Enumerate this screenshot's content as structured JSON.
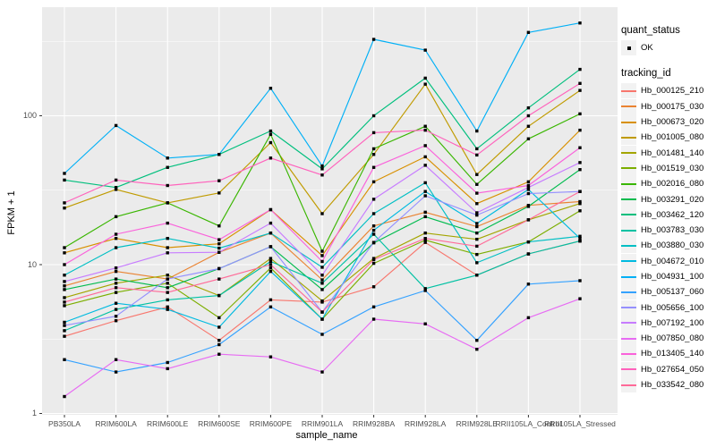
{
  "panel": {
    "bg": "#EBEBEB",
    "grid_major_color": "#FFFFFF",
    "grid_minor_color": "#FFFFFF",
    "tick_color": "#333333",
    "point_color": "#000000"
  },
  "axes": {
    "x": {
      "title": "sample_name",
      "labels": [
        "PB350LA",
        "RRIM600LA",
        "RRIM600LE",
        "RRIM600SE",
        "RRIM600PE",
        "RRIM901LA",
        "RRIM928BA",
        "RRIM928LA",
        "RRIM928LE",
        "RRII105LA_Control",
        "RRII105LA_Stressed"
      ]
    },
    "y": {
      "title": "FPKM + 1",
      "tick_labels": [
        "100",
        "10",
        "1"
      ],
      "tick_values": [
        100,
        10,
        1
      ],
      "minor_values": [
        316.23,
        31.623,
        3.1623
      ],
      "scale": "log10"
    }
  },
  "legend": {
    "quant_status": {
      "title": "quant_status",
      "items": [
        {
          "label": "OK",
          "marker": "point",
          "color": "#000000"
        }
      ]
    },
    "tracking_id": {
      "title": "tracking_id"
    }
  },
  "chart_data": {
    "type": "line",
    "title": "",
    "xlabel": "sample_name",
    "ylabel": "FPKM + 1",
    "y_scale": "log10",
    "ylim": [
      1,
      540
    ],
    "grid": true,
    "legend_position": "right",
    "point_marker": {
      "shape": "square",
      "color": "#000000",
      "size": 3.4
    },
    "categories": [
      "PB350LA",
      "RRIM600LA",
      "RRIM600LE",
      "RRIM600SE",
      "RRIM600PE",
      "RRIM901LA",
      "RRIM928BA",
      "RRIM928LA",
      "RRIM928LE",
      "RRII105LA_Control",
      "RRII105LA_Stressed"
    ],
    "series": [
      {
        "name": "Hb_000125_210",
        "color": "#F8766D",
        "values": [
          3.3,
          4.2,
          5.2,
          3.1,
          5.8,
          5.6,
          7.1,
          14.1,
          8.5,
          11.8,
          14.4
        ]
      },
      {
        "name": "Hb_000175_030",
        "color": "#EA8331",
        "values": [
          7.2,
          9,
          8,
          12.1,
          16.3,
          7.9,
          18.2,
          22.5,
          18,
          25,
          26.5
        ]
      },
      {
        "name": "Hb_000673_020",
        "color": "#D89000",
        "values": [
          12,
          15,
          13,
          13.8,
          23.4,
          11.5,
          36,
          53,
          25.7,
          36,
          80
        ]
      },
      {
        "name": "Hb_001005_080",
        "color": "#C09B00",
        "values": [
          24,
          32,
          26,
          30.3,
          66,
          22,
          55,
          163,
          40.3,
          85,
          148
        ]
      },
      {
        "name": "Hb_001481_140",
        "color": "#A3A500",
        "values": [
          6,
          7.5,
          8.5,
          6.2,
          11,
          5.7,
          11,
          16.3,
          14.8,
          20,
          25.7
        ]
      },
      {
        "name": "Hb_001519_030",
        "color": "#7CAE00",
        "values": [
          5.3,
          6.5,
          7.5,
          4.4,
          9.5,
          4.3,
          10.2,
          14.6,
          11.7,
          14.2,
          23
        ]
      },
      {
        "name": "Hb_002016_080",
        "color": "#39B600",
        "values": [
          13,
          21,
          26,
          18.2,
          75,
          12.3,
          60,
          85,
          34.6,
          70,
          103
        ]
      },
      {
        "name": "Hb_003291_020",
        "color": "#00BB4E",
        "values": [
          6.8,
          8,
          7,
          9.4,
          13.2,
          6.8,
          14,
          21,
          16.3,
          24.6,
          43.5
        ]
      },
      {
        "name": "Hb_003462_120",
        "color": "#00BF7D",
        "values": [
          37,
          33,
          45,
          55,
          79,
          44,
          100,
          179,
          60,
          113,
          205
        ]
      },
      {
        "name": "Hb_003783_030",
        "color": "#00C1A3",
        "values": [
          3.6,
          5,
          5.8,
          6.2,
          10.5,
          7.5,
          16,
          6.9,
          8.5,
          11.8,
          14.4
        ]
      },
      {
        "name": "Hb_003880_030",
        "color": "#00BFC4",
        "values": [
          8.5,
          13,
          15,
          12.9,
          16.3,
          9.6,
          22,
          35.5,
          10.3,
          14.2,
          15.5
        ]
      },
      {
        "name": "Hb_004672_010",
        "color": "#00BAE0",
        "values": [
          4.1,
          5.5,
          5,
          3.8,
          9,
          4.3,
          17,
          31,
          18.9,
          32,
          15
        ]
      },
      {
        "name": "Hb_004931_100",
        "color": "#00B0F6",
        "values": [
          41,
          86,
          52,
          55,
          153,
          46,
          326,
          276,
          79,
          363,
          420
        ]
      },
      {
        "name": "Hb_005137_060",
        "color": "#35A2FF",
        "values": [
          2.3,
          1.9,
          2.2,
          2.9,
          5.2,
          3.4,
          5.2,
          6.7,
          3.1,
          7.4,
          7.8
        ]
      },
      {
        "name": "Hb_005656_100",
        "color": "#9590FF",
        "values": [
          3.9,
          4.5,
          8,
          9.4,
          13.2,
          4.8,
          14.1,
          29,
          21.5,
          30,
          31
        ]
      },
      {
        "name": "Hb_007192_100",
        "color": "#C77CFF",
        "values": [
          7.7,
          9.5,
          12,
          12.1,
          19,
          8.5,
          27.5,
          46.5,
          22.3,
          33,
          48.5
        ]
      },
      {
        "name": "Hb_007850_080",
        "color": "#E76BF3",
        "values": [
          1.3,
          2.3,
          2,
          2.5,
          2.4,
          1.9,
          4.3,
          4,
          2.7,
          4.4,
          5.9
        ]
      },
      {
        "name": "Hb_013405_140",
        "color": "#FA62DB",
        "values": [
          10,
          16,
          19,
          14.7,
          23.4,
          10.5,
          45,
          63,
          30.2,
          34,
          61
        ]
      },
      {
        "name": "Hb_027654_050",
        "color": "#FF62BC",
        "values": [
          26,
          37,
          34,
          36.6,
          52,
          40,
          77,
          80,
          54.5,
          100,
          165
        ]
      },
      {
        "name": "Hb_033542_080",
        "color": "#FF6A98",
        "values": [
          5.6,
          7,
          6.5,
          8,
          10,
          4.8,
          10.8,
          15,
          13.3,
          20,
          31
        ]
      }
    ]
  }
}
